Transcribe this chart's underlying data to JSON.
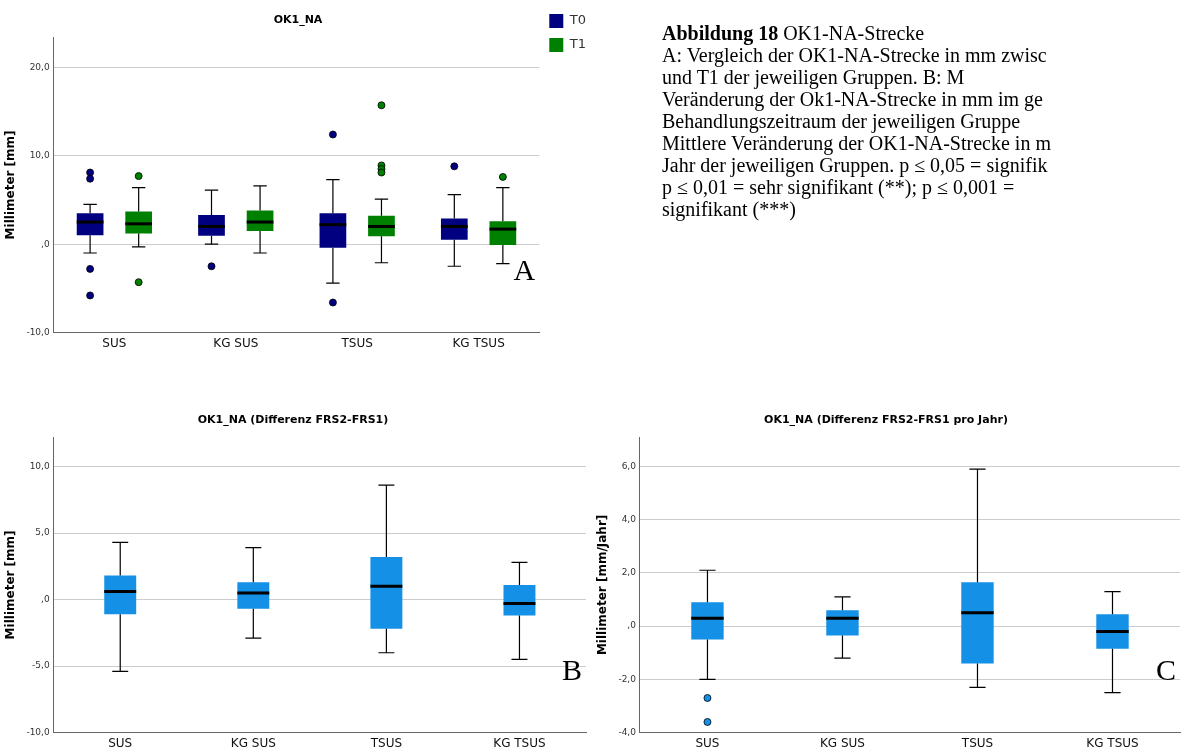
{
  "chart_data": [
    {
      "type": "box",
      "title": "OK1_NA",
      "ylabel": "Millimeter [mm]",
      "categories": [
        "SUS",
        "KG SUS",
        "TSUS",
        "KG TSUS"
      ],
      "series": [
        {
          "name": "T0",
          "color": "#000080",
          "boxes": [
            {
              "low": -1.0,
              "q1": 1.0,
              "median": 2.5,
              "q3": 3.5,
              "high": 4.5,
              "outliers": [
                8.1,
                7.4,
                -2.8,
                -5.8
              ]
            },
            {
              "low": 0,
              "q1": 0.95,
              "median": 2.0,
              "q3": 3.3,
              "high": 6.1,
              "outliers": [
                -2.5
              ]
            },
            {
              "low": -4.4,
              "q1": -0.4,
              "median": 2.2,
              "q3": 3.5,
              "high": 7.3,
              "outliers": [
                12.4,
                -6.6
              ]
            },
            {
              "low": -2.5,
              "q1": 0.5,
              "median": 2.0,
              "q3": 2.9,
              "high": 5.6,
              "outliers": [
                8.8
              ]
            }
          ]
        },
        {
          "name": "T1",
          "color": "#008000",
          "boxes": [
            {
              "low": -0.3,
              "q1": 1.2,
              "median": 2.3,
              "q3": 3.7,
              "high": 6.4,
              "outliers": [
                7.7,
                -4.3
              ]
            },
            {
              "low": -1.0,
              "q1": 1.5,
              "median": 2.5,
              "q3": 3.8,
              "high": 6.6
            },
            {
              "low": -2.1,
              "q1": 0.9,
              "median": 2.0,
              "q3": 3.2,
              "high": 5.1,
              "outliers": [
                8.9,
                8.5,
                8.1,
                15.7
              ]
            },
            {
              "low": -2.2,
              "q1": -0.1,
              "median": 1.7,
              "q3": 2.6,
              "high": 6.4,
              "outliers": [
                7.6
              ]
            }
          ]
        }
      ],
      "ylim": [
        -10,
        23.4
      ],
      "yticks": [
        {
          "value": -10,
          "label": "-10,0"
        },
        {
          "value": 0,
          "label": ",0"
        },
        {
          "value": 10,
          "label": "10,0"
        },
        {
          "value": 20,
          "label": "20,0"
        }
      ],
      "grid": "y",
      "legend": "top right",
      "annotations": [
        "A"
      ]
    },
    {
      "type": "other",
      "title": "Abbildung 18",
      "subtitle": "OK1-NA-Strecke",
      "annotations": [
        "A: Vergleich der OK1-NA-Strecke in mm zwisc",
        "und T1 der jeweiligen Gruppen. B: M",
        "Veränderung der Ok1-NA-Strecke in mm im ge",
        "Behandlungszeitraum der jeweiligen Gruppe",
        "Mittlere Veränderung der OK1-NA-Strecke in m",
        "Jahr der jeweiligen Gruppen. p ≤ 0,05 = signifik",
        "p ≤ 0,01 = sehr signifikant (**); p ≤ 0,001 =",
        "signifikant (***)"
      ]
    },
    {
      "type": "box",
      "title": "OK1_NA (Differenz FRS2-FRS1)",
      "ylabel": "Millimeter [mm]",
      "categories": [
        "SUS",
        "KG SUS",
        "TSUS",
        "KG TSUS"
      ],
      "color": "#1490e6",
      "boxes": [
        {
          "low": -5.4,
          "q1": -1.1,
          "median": 0.6,
          "q3": 1.8,
          "high": 4.3
        },
        {
          "low": -2.9,
          "q1": -0.7,
          "median": 0.5,
          "q3": 1.3,
          "high": 3.9
        },
        {
          "low": -4.0,
          "q1": -2.2,
          "median": 1.0,
          "q3": 3.2,
          "high": 8.6
        },
        {
          "low": -4.5,
          "q1": -1.2,
          "median": -0.3,
          "q3": 1.1,
          "high": 2.8
        }
      ],
      "ylim": [
        -10,
        12.2
      ],
      "yticks": [
        {
          "value": -10,
          "label": "-10,0"
        },
        {
          "value": -5,
          "label": "-5,0"
        },
        {
          "value": 0,
          "label": ",0"
        },
        {
          "value": 5,
          "label": "5,0"
        },
        {
          "value": 10,
          "label": "10,0"
        }
      ],
      "grid": "y",
      "annotations": [
        "B"
      ]
    },
    {
      "type": "box",
      "title": "OK1_NA (Differenz FRS2-FRS1 pro Jahr)",
      "ylabel": "Millimeter [mm/Jahr]",
      "categories": [
        "SUS",
        "KG SUS",
        "TSUS",
        "KG TSUS"
      ],
      "color": "#1490e6",
      "boxes": [
        {
          "low": -2.0,
          "q1": -0.5,
          "median": 0.3,
          "q3": 0.9,
          "high": 2.1,
          "outliers": [
            -2.7,
            -3.6
          ]
        },
        {
          "low": -1.2,
          "q1": -0.35,
          "median": 0.3,
          "q3": 0.6,
          "high": 1.1
        },
        {
          "low": -2.3,
          "q1": -1.4,
          "median": 0.5,
          "q3": 1.65,
          "high": 5.9
        },
        {
          "low": -2.5,
          "q1": -0.85,
          "median": -0.2,
          "q3": 0.45,
          "high": 1.3
        }
      ],
      "ylim": [
        -4,
        7.1
      ],
      "yticks": [
        {
          "value": -4,
          "label": "-4,0"
        },
        {
          "value": -2,
          "label": "-2,0"
        },
        {
          "value": 0,
          "label": ",0"
        },
        {
          "value": 2,
          "label": "2,0"
        },
        {
          "value": 4,
          "label": "4,0"
        },
        {
          "value": 6,
          "label": "6,0"
        }
      ],
      "grid": "y",
      "annotations": [
        "C"
      ]
    }
  ]
}
